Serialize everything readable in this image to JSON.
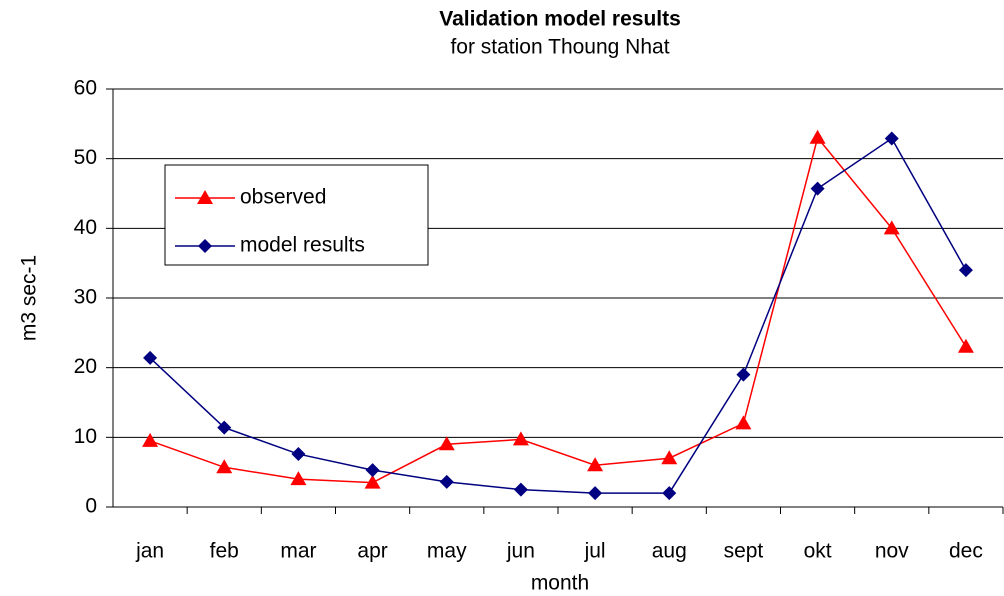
{
  "chart_data": {
    "type": "line",
    "title": "Validation model results",
    "subtitle": "for station Thoung Nhat",
    "x_label": "month",
    "y_label": "m3 sec-1",
    "categories": [
      "jan",
      "feb",
      "mar",
      "apr",
      "may",
      "jun",
      "jul",
      "aug",
      "sept",
      "okt",
      "nov",
      "dec"
    ],
    "series": [
      {
        "name": "observed",
        "color": "#ff0000",
        "marker": "triangle",
        "values": [
          9.5,
          5.7,
          4,
          3.5,
          9,
          9.7,
          6,
          7,
          12,
          53,
          40,
          23
        ]
      },
      {
        "name": "model results",
        "color": "#000080",
        "marker": "diamond",
        "values": [
          21.4,
          11.4,
          7.6,
          5.3,
          3.6,
          2.5,
          2,
          2,
          19,
          45.7,
          52.9,
          34
        ]
      }
    ],
    "ylim": [
      0,
      60
    ],
    "yticks": [
      0,
      10,
      20,
      30,
      40,
      50,
      60
    ],
    "grid": true
  }
}
